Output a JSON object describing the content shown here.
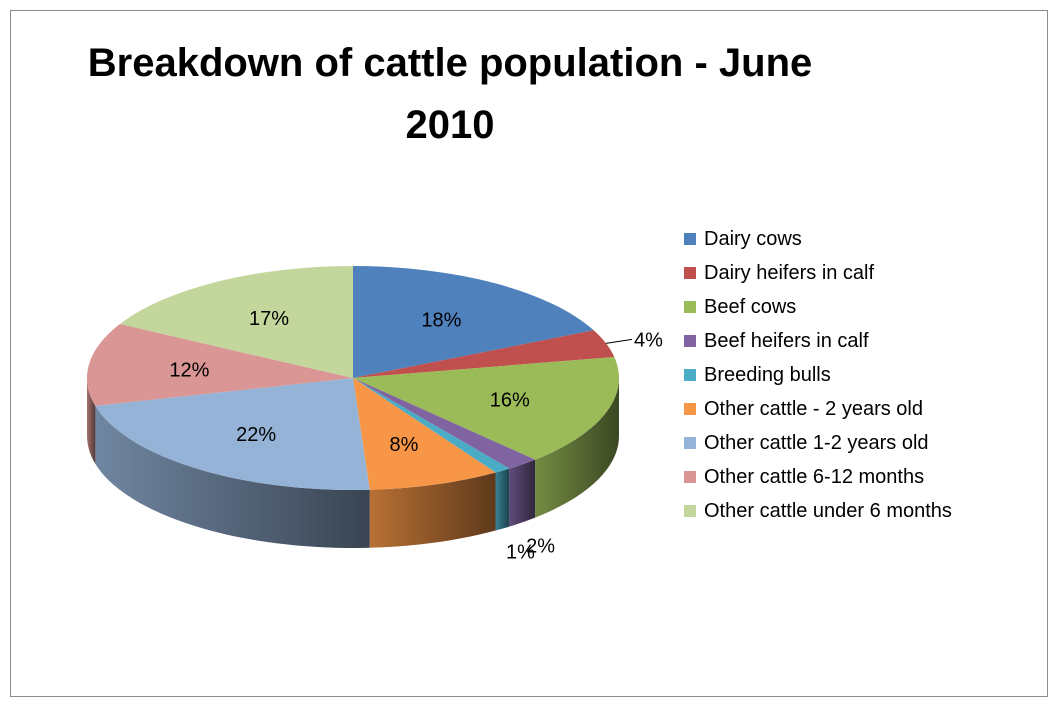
{
  "chart_data": {
    "type": "pie",
    "title": "Breakdown of cattle population - June 2010",
    "style": "3d-exploded-none",
    "legend_position": "right",
    "categories": [
      "Dairy cows",
      "Dairy heifers in calf",
      "Beef cows",
      "Beef heifers in calf",
      "Breeding bulls",
      "Other cattle - 2 years old",
      "Other cattle 1-2 years old",
      "Other cattle 6-12 months",
      "Other cattle under 6 months"
    ],
    "values": [
      18,
      4,
      16,
      2,
      1,
      8,
      22,
      12,
      17
    ],
    "labels": [
      "18%",
      "4%",
      "16%",
      "2%",
      "1%",
      "8%",
      "22%",
      "12%",
      "17%"
    ],
    "colors": [
      "#4f81bd",
      "#c0504d",
      "#9bbb59",
      "#8064a2",
      "#4bacc6",
      "#f79646",
      "#95b3d7",
      "#d99694",
      "#c3d69b"
    ]
  }
}
